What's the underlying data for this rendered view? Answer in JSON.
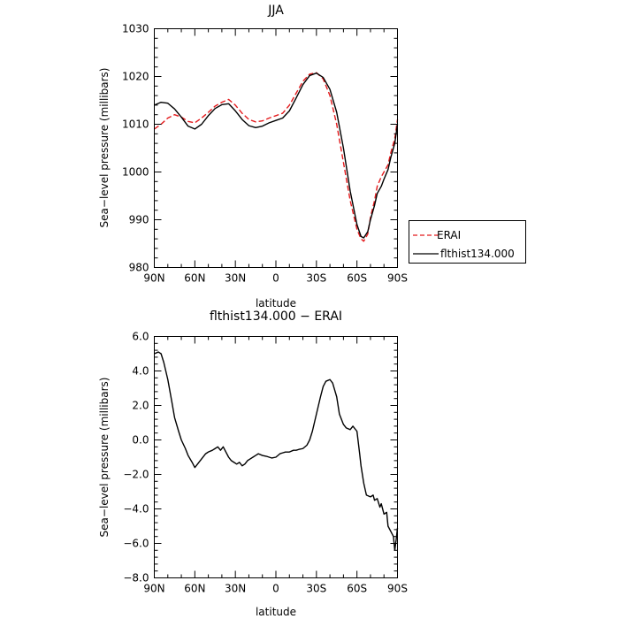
{
  "chart_data": [
    {
      "type": "line",
      "title": "JJA",
      "xlabel": "latitude",
      "ylabel": "Sea−level pressure (millibars)",
      "xlim": [
        90,
        -90
      ],
      "ylim": [
        980,
        1030
      ],
      "x_ticks": [
        90,
        60,
        30,
        0,
        -30,
        -60,
        -90
      ],
      "x_tick_labels": [
        "90N",
        "60N",
        "30N",
        "0",
        "30S",
        "60S",
        "90S"
      ],
      "y_ticks": [
        980,
        990,
        1000,
        1010,
        1020,
        1030
      ],
      "y_tick_labels": [
        "980",
        "990",
        "1000",
        "1010",
        "1020",
        "1030"
      ],
      "legend_position": "outside-right",
      "series": [
        {
          "name": "ERAI",
          "color": "#e41a1c",
          "style": "dashed",
          "x": [
            90,
            85,
            80,
            75,
            70,
            65,
            60,
            55,
            50,
            45,
            40,
            35,
            30,
            25,
            20,
            15,
            10,
            5,
            0,
            -5,
            -10,
            -15,
            -20,
            -25,
            -30,
            -35,
            -40,
            -45,
            -50,
            -55,
            -60,
            -63,
            -65,
            -68,
            -70,
            -73,
            -75,
            -78,
            -80,
            -83,
            -85,
            -88,
            -90
          ],
          "y": [
            1009,
            1010,
            1011.3,
            1012,
            1011.5,
            1010.6,
            1010.3,
            1011.3,
            1012.5,
            1013.8,
            1014.6,
            1015.2,
            1014,
            1012.3,
            1011,
            1010.5,
            1010.7,
            1011.3,
            1011.8,
            1012.3,
            1014,
            1016.5,
            1019,
            1020.5,
            1020.8,
            1019.5,
            1016,
            1010,
            1002,
            994,
            988,
            986,
            985.5,
            987,
            990.5,
            994,
            997,
            999,
            1000,
            1001.5,
            1004,
            1007,
            1011
          ]
        },
        {
          "name": "flthist134.000",
          "color": "#000000",
          "style": "solid",
          "x": [
            90,
            85,
            80,
            75,
            70,
            65,
            60,
            55,
            50,
            45,
            40,
            35,
            30,
            25,
            20,
            15,
            10,
            5,
            0,
            -5,
            -10,
            -15,
            -20,
            -25,
            -30,
            -35,
            -40,
            -45,
            -50,
            -55,
            -60,
            -63,
            -65,
            -68,
            -70,
            -73,
            -75,
            -78,
            -80,
            -83,
            -85,
            -88,
            -90
          ],
          "y": [
            1014,
            1014.6,
            1014.4,
            1013.2,
            1011.5,
            1009.6,
            1009,
            1010,
            1011.8,
            1013.3,
            1014.1,
            1014.3,
            1012.8,
            1011,
            1009.7,
            1009.3,
            1009.6,
            1010.3,
            1010.8,
            1011.3,
            1012.8,
            1015.5,
            1018.3,
            1020.2,
            1020.7,
            1019.8,
            1017.3,
            1012.5,
            1005,
            996,
            989,
            986.5,
            986.2,
            987.5,
            990,
            993,
            995.5,
            997,
            998.5,
            1000.5,
            1003,
            1006,
            1010
          ]
        }
      ]
    },
    {
      "type": "line",
      "title": "flthist134.000 − ERAI",
      "xlabel": "latitude",
      "ylabel": "Sea−level pressure (millibars)",
      "xlim": [
        90,
        -90
      ],
      "ylim": [
        -8,
        6
      ],
      "x_ticks": [
        90,
        60,
        30,
        0,
        -30,
        -60,
        -90
      ],
      "x_tick_labels": [
        "90N",
        "60N",
        "30N",
        "0",
        "30S",
        "60S",
        "90S"
      ],
      "y_ticks": [
        -8,
        -6,
        -4,
        -2,
        0,
        2,
        4,
        6
      ],
      "y_tick_labels": [
        "−8.0",
        "−6.0",
        "−4.0",
        "−2.0",
        "0.0",
        "2.0",
        "4.0",
        "6.0"
      ],
      "series": [
        {
          "color": "#000000",
          "style": "solid",
          "x": [
            90,
            87,
            85,
            83,
            80,
            77,
            75,
            72,
            70,
            67,
            65,
            62,
            60,
            58,
            55,
            52,
            50,
            47,
            45,
            43,
            41,
            39,
            37,
            35,
            33,
            31,
            29,
            27,
            25,
            23,
            21,
            19,
            17,
            15,
            13,
            10,
            7,
            5,
            3,
            0,
            -3,
            -5,
            -7,
            -10,
            -13,
            -15,
            -17,
            -20,
            -23,
            -25,
            -27,
            -30,
            -33,
            -35,
            -37,
            -40,
            -42,
            -45,
            -47,
            -50,
            -52,
            -55,
            -57,
            -60,
            -62,
            -63,
            -65,
            -67,
            -70,
            -72,
            -73,
            -75,
            -77,
            -78,
            -80,
            -82,
            -83,
            -85,
            -87,
            -88,
            -89,
            -90
          ],
          "y": [
            5,
            5.1,
            5,
            4.5,
            3.5,
            2.2,
            1.3,
            0.5,
            0,
            -0.5,
            -0.9,
            -1.3,
            -1.6,
            -1.4,
            -1.1,
            -0.8,
            -0.7,
            -0.6,
            -0.5,
            -0.4,
            -0.6,
            -0.4,
            -0.7,
            -1,
            -1.2,
            -1.3,
            -1.4,
            -1.3,
            -1.5,
            -1.4,
            -1.2,
            -1.1,
            -1,
            -0.9,
            -0.8,
            -0.9,
            -0.95,
            -1,
            -1.05,
            -1,
            -0.8,
            -0.75,
            -0.7,
            -0.7,
            -0.6,
            -0.6,
            -0.55,
            -0.5,
            -0.3,
            0,
            0.5,
            1.5,
            2.5,
            3.1,
            3.4,
            3.5,
            3.3,
            2.5,
            1.5,
            0.9,
            0.7,
            0.6,
            0.8,
            0.5,
            -0.8,
            -1.5,
            -2.5,
            -3.2,
            -3.3,
            -3.2,
            -3.5,
            -3.4,
            -3.9,
            -3.7,
            -4.3,
            -4.2,
            -5,
            -5.3,
            -5.6,
            -6.4,
            -5.8,
            -5.1
          ]
        }
      ]
    }
  ]
}
